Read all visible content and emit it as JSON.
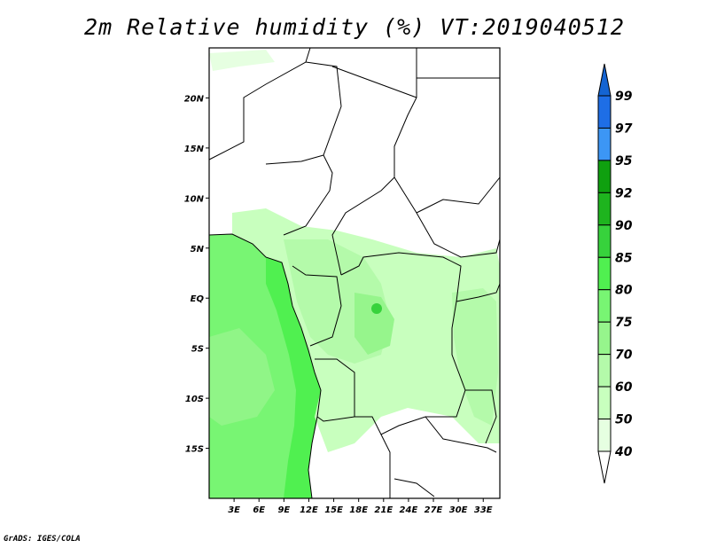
{
  "title": "2m Relative humidity (%) VT:2019040512",
  "credit": "GrADS: IGES/COLA",
  "map": {
    "lon_range": [
      0,
      35
    ],
    "lat_range": [
      -20,
      25
    ],
    "lat_labels": [
      {
        "v": 20,
        "t": "20N"
      },
      {
        "v": 15,
        "t": "15N"
      },
      {
        "v": 10,
        "t": "10N"
      },
      {
        "v": 5,
        "t": "5N"
      },
      {
        "v": 0,
        "t": "EQ"
      },
      {
        "v": -5,
        "t": "5S"
      },
      {
        "v": -10,
        "t": "10S"
      },
      {
        "v": -15,
        "t": "15S"
      }
    ],
    "lon_labels": [
      {
        "v": 3,
        "t": "3E"
      },
      {
        "v": 6,
        "t": "6E"
      },
      {
        "v": 9,
        "t": "9E"
      },
      {
        "v": 12,
        "t": "12E"
      },
      {
        "v": 15,
        "t": "15E"
      },
      {
        "v": 18,
        "t": "18E"
      },
      {
        "v": 21,
        "t": "21E"
      },
      {
        "v": 24,
        "t": "24E"
      },
      {
        "v": 27,
        "t": "27E"
      },
      {
        "v": 30,
        "t": "30E"
      },
      {
        "v": 33,
        "t": "33E"
      }
    ]
  },
  "colorbar": {
    "labels": [
      "99",
      "97",
      "95",
      "92",
      "90",
      "85",
      "80",
      "75",
      "70",
      "60",
      "50",
      "40"
    ],
    "colors": [
      "#1e6ee6",
      "#3c96f5",
      "#0fa00f",
      "#1eb41e",
      "#37d23c",
      "#50f050",
      "#78f573",
      "#96f58c",
      "#b4faaa",
      "#c8ffbe",
      "#e6ffe1"
    ],
    "top_arrow_color": "#1464d2",
    "bottom_arrow_color": "#ffffff"
  }
}
